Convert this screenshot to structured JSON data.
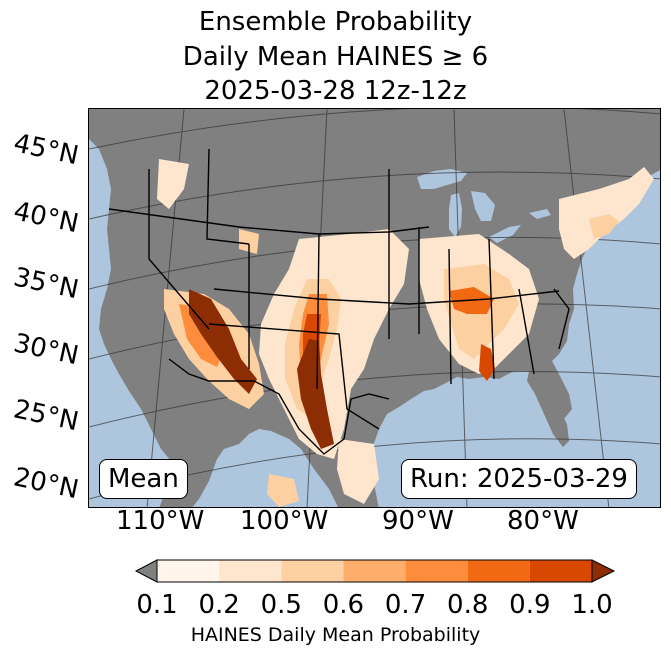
{
  "title": {
    "line1": "Ensemble Probability",
    "line2": "Daily Mean HAINES ≥ 6",
    "line3": "2025-03-28 12z-12z"
  },
  "map": {
    "ocean_color": "#aec5de",
    "land_color": "#808080",
    "border_color": "#000000",
    "graticule_color": "#333333"
  },
  "lat_labels": [
    "45°N",
    "40°N",
    "35°N",
    "30°N",
    "25°N",
    "20°N"
  ],
  "lon_labels": [
    "110°W",
    "100°W",
    "90°W",
    "80°W"
  ],
  "boxes": {
    "left": "Mean",
    "right": "Run: 2025-03-29"
  },
  "colorbar": {
    "ticks": [
      "0.1",
      "0.2",
      "0.5",
      "0.6",
      "0.7",
      "0.8",
      "0.9",
      "1.0"
    ],
    "colors": [
      "#fff5eb",
      "#fee6ce",
      "#fdd0a2",
      "#fdae6b",
      "#fd8d3c",
      "#f16913",
      "#d94801",
      "#8c2d04"
    ],
    "under_color": "#808080",
    "label": "HAINES Daily Mean Probability"
  }
}
